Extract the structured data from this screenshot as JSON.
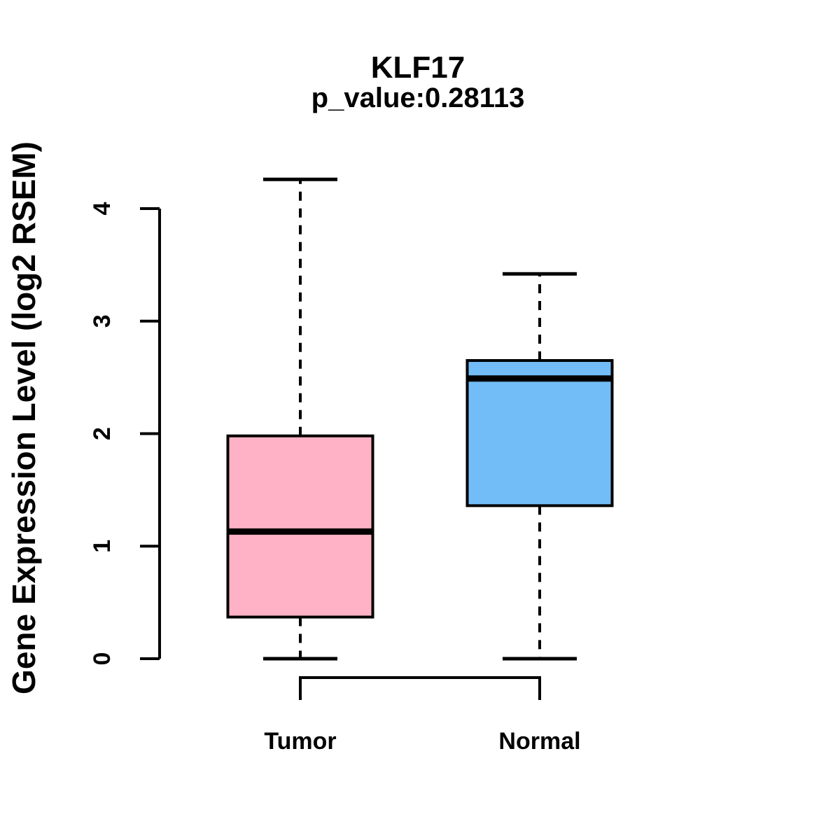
{
  "page": {
    "background": "#ffffff"
  },
  "chart_data": {
    "type": "boxplot",
    "title": "KLF17",
    "subtitle": "p_value:0.28113",
    "ylabel": "Gene Expression Level (log2 RSEM)",
    "xlabel": "",
    "categories": [
      "Tumor",
      "Normal"
    ],
    "yticks": [
      0,
      1,
      2,
      3,
      4
    ],
    "ylim": [
      0,
      4.3
    ],
    "grid": false,
    "legend": "none",
    "series": [
      {
        "name": "Tumor",
        "fill": "#FFB2C5",
        "stats": {
          "min": 0,
          "q1": 0.37,
          "median": 1.13,
          "q3": 1.98,
          "max": 4.26
        }
      },
      {
        "name": "Normal",
        "fill": "#72BDF7",
        "stats": {
          "min": 0,
          "q1": 1.36,
          "median": 2.49,
          "q3": 2.65,
          "max": 3.42
        }
      }
    ],
    "annotations": {
      "comparison_bracket_between": [
        "Tumor",
        "Normal"
      ]
    },
    "colors": {
      "stroke": "#000000",
      "tumor_fill": "#FFB2C5",
      "normal_fill": "#72BDF7"
    }
  }
}
